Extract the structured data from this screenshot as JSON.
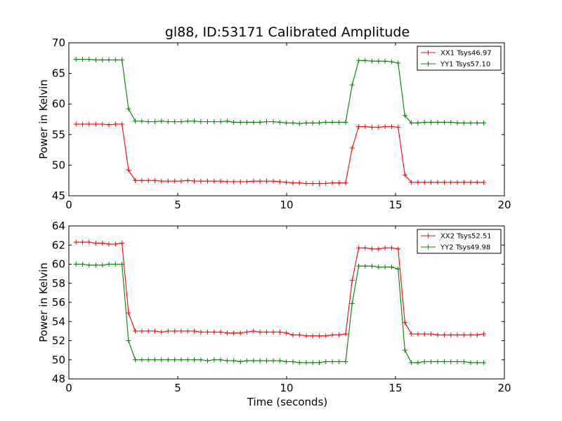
{
  "title": "gl88, ID:53171 Calibrated Amplitude",
  "colors": {
    "red": "#ff0000",
    "green": "#008000"
  },
  "chart_data": [
    {
      "type": "line",
      "xlabel": "",
      "ylabel": "Power in Kelvin",
      "xlim": [
        0,
        20
      ],
      "ylim": [
        45,
        70
      ],
      "xticks": [
        0,
        5,
        10,
        15,
        20
      ],
      "yticks": [
        45,
        50,
        55,
        60,
        65,
        70
      ],
      "grid": false,
      "legend": "top-right",
      "x": [
        0.33,
        0.63,
        0.93,
        1.24,
        1.54,
        1.84,
        2.14,
        2.44,
        2.74,
        3.05,
        3.35,
        3.65,
        3.95,
        4.25,
        4.56,
        4.86,
        5.16,
        5.46,
        5.76,
        6.06,
        6.37,
        6.67,
        6.97,
        7.27,
        7.57,
        7.88,
        8.18,
        8.48,
        8.78,
        9.08,
        9.39,
        9.69,
        9.99,
        10.29,
        10.59,
        10.9,
        11.2,
        11.5,
        11.8,
        12.1,
        12.41,
        12.71,
        13.01,
        13.31,
        13.61,
        13.92,
        14.22,
        14.52,
        14.82,
        15.12,
        15.43,
        15.73,
        16.03,
        16.33,
        16.63,
        16.94,
        17.24,
        17.54,
        17.84,
        18.14,
        18.45,
        18.75,
        19.05
      ],
      "series": [
        {
          "name": "XX1 Tsys46.97",
          "color": "#ff0000",
          "values": [
            56.7,
            56.7,
            56.7,
            56.7,
            56.7,
            56.6,
            56.7,
            56.7,
            49.2,
            47.5,
            47.5,
            47.5,
            47.5,
            47.4,
            47.4,
            47.4,
            47.4,
            47.5,
            47.4,
            47.4,
            47.4,
            47.4,
            47.4,
            47.3,
            47.3,
            47.3,
            47.3,
            47.4,
            47.4,
            47.4,
            47.4,
            47.3,
            47.2,
            47.1,
            47.1,
            47.0,
            47.0,
            47.0,
            47.0,
            47.1,
            47.1,
            47.1,
            52.8,
            56.3,
            56.3,
            56.2,
            56.2,
            56.3,
            56.3,
            56.2,
            48.4,
            47.2,
            47.2,
            47.2,
            47.2,
            47.2,
            47.2,
            47.2,
            47.2,
            47.2,
            47.2,
            47.2,
            47.2
          ]
        },
        {
          "name": "YY1 Tsys57.10",
          "color": "#008000",
          "values": [
            67.3,
            67.3,
            67.3,
            67.2,
            67.2,
            67.2,
            67.2,
            67.2,
            59.2,
            57.2,
            57.2,
            57.1,
            57.1,
            57.2,
            57.1,
            57.1,
            57.1,
            57.2,
            57.2,
            57.1,
            57.1,
            57.1,
            57.1,
            57.2,
            57.0,
            57.0,
            57.0,
            57.0,
            57.0,
            57.1,
            57.1,
            57.0,
            56.9,
            56.9,
            56.8,
            56.9,
            56.9,
            56.9,
            57.0,
            57.0,
            57.0,
            57.0,
            63.1,
            67.1,
            67.1,
            67.0,
            67.0,
            67.0,
            66.9,
            66.7,
            58.1,
            56.9,
            56.9,
            57.0,
            57.0,
            57.0,
            57.0,
            57.0,
            56.9,
            56.9,
            56.9,
            56.9,
            56.9
          ]
        }
      ]
    },
    {
      "type": "line",
      "xlabel": "Time (seconds)",
      "ylabel": "Power in Kelvin",
      "xlim": [
        0,
        20
      ],
      "ylim": [
        48,
        64
      ],
      "xticks": [
        0,
        5,
        10,
        15,
        20
      ],
      "yticks": [
        48,
        50,
        52,
        54,
        56,
        58,
        60,
        62,
        64
      ],
      "grid": false,
      "legend": "top-right",
      "x": [
        0.33,
        0.63,
        0.93,
        1.24,
        1.54,
        1.84,
        2.14,
        2.44,
        2.74,
        3.05,
        3.35,
        3.65,
        3.95,
        4.25,
        4.56,
        4.86,
        5.16,
        5.46,
        5.76,
        6.06,
        6.37,
        6.67,
        6.97,
        7.27,
        7.57,
        7.88,
        8.18,
        8.48,
        8.78,
        9.08,
        9.39,
        9.69,
        9.99,
        10.29,
        10.59,
        10.9,
        11.2,
        11.5,
        11.8,
        12.1,
        12.41,
        12.71,
        13.01,
        13.31,
        13.61,
        13.92,
        14.22,
        14.52,
        14.82,
        15.12,
        15.43,
        15.73,
        16.03,
        16.33,
        16.63,
        16.94,
        17.24,
        17.54,
        17.84,
        18.14,
        18.45,
        18.75,
        19.05
      ],
      "series": [
        {
          "name": "XX2 Tsys52.51",
          "color": "#ff0000",
          "values": [
            62.3,
            62.3,
            62.3,
            62.2,
            62.2,
            62.1,
            62.1,
            62.2,
            54.9,
            53.0,
            53.0,
            53.0,
            53.0,
            52.9,
            53.0,
            53.0,
            53.0,
            53.0,
            53.0,
            52.9,
            52.9,
            52.9,
            52.9,
            52.8,
            52.8,
            52.8,
            52.9,
            53.0,
            52.9,
            52.9,
            52.9,
            52.9,
            52.8,
            52.6,
            52.6,
            52.5,
            52.5,
            52.5,
            52.5,
            52.6,
            52.6,
            52.7,
            58.3,
            61.7,
            61.7,
            61.6,
            61.6,
            61.7,
            61.7,
            61.6,
            53.9,
            52.7,
            52.7,
            52.7,
            52.7,
            52.6,
            52.6,
            52.6,
            52.6,
            52.6,
            52.6,
            52.6,
            52.7
          ]
        },
        {
          "name": "YY2 Tsys49.98",
          "color": "#008000",
          "values": [
            60.0,
            60.0,
            59.9,
            59.9,
            59.9,
            60.0,
            60.0,
            60.0,
            52.0,
            50.0,
            50.0,
            50.0,
            50.0,
            50.0,
            50.0,
            50.0,
            50.0,
            50.0,
            50.0,
            50.0,
            49.9,
            50.0,
            50.0,
            49.9,
            49.9,
            49.8,
            49.9,
            49.9,
            49.9,
            49.9,
            49.9,
            49.9,
            49.8,
            49.8,
            49.7,
            49.7,
            49.7,
            49.7,
            49.8,
            49.8,
            49.8,
            49.8,
            55.9,
            59.8,
            59.8,
            59.8,
            59.7,
            59.7,
            59.7,
            59.5,
            51.0,
            49.7,
            49.7,
            49.8,
            49.8,
            49.8,
            49.8,
            49.8,
            49.8,
            49.8,
            49.7,
            49.7,
            49.7
          ]
        }
      ]
    }
  ]
}
